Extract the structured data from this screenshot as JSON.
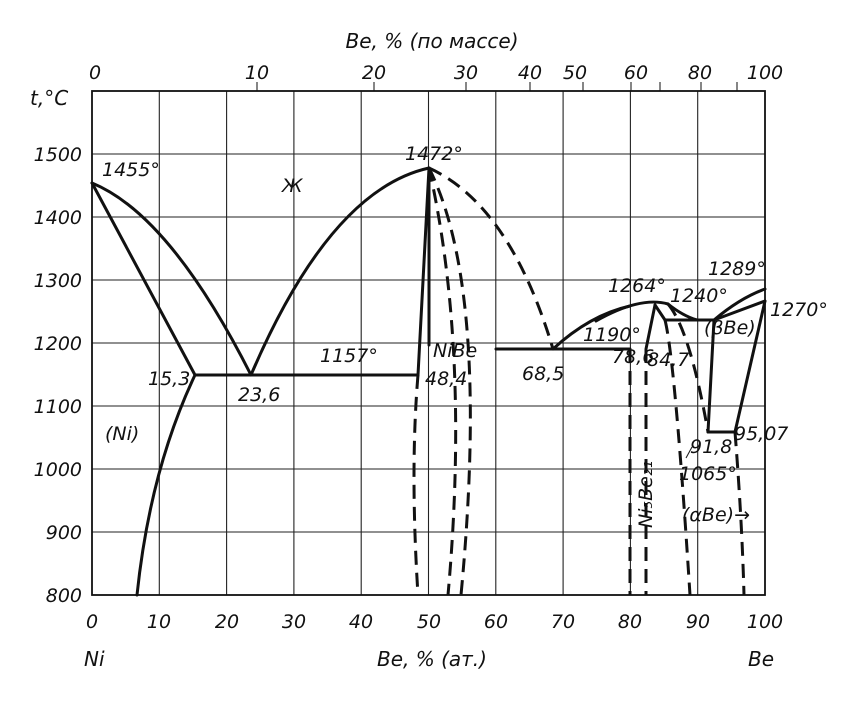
{
  "top_axis": {
    "title": "Be, % (по массе)",
    "ticks": [
      {
        "label": "0",
        "at": 0
      },
      {
        "label": "10",
        "at": 24.5
      },
      {
        "label": "20",
        "at": 42.0
      },
      {
        "label": "30",
        "at": 55.5
      },
      {
        "label": "40",
        "at": 65.0
      },
      {
        "label": "50",
        "at": 73.0
      },
      {
        "label": "60",
        "at": 80.0
      },
      {
        "label": "80",
        "at": 90.5
      },
      {
        "label": "100",
        "at": 100
      }
    ]
  },
  "bottom_axis": {
    "title": "Be, % (ат.)",
    "left_element": "Ni",
    "right_element": "Be",
    "ticks": [
      "0",
      "10",
      "20",
      "30",
      "40",
      "50",
      "60",
      "70",
      "80",
      "90",
      "100"
    ]
  },
  "left_axis": {
    "title": "t,°C",
    "ticks": [
      "1500",
      "1400",
      "1300",
      "1200",
      "1100",
      "1000",
      "900",
      "800"
    ]
  },
  "phase_labels": {
    "liquid": "Ж",
    "ni_solid": "(Ni)",
    "nibe": "NiBe",
    "ni5be21": "Ni₅Be₂₁",
    "beta_be": "(βBe)",
    "alpha_be": "(αBe)→"
  },
  "point_labels": {
    "t1455": "1455°",
    "t1472": "1472°",
    "t1157": "1157°",
    "t1190": "1190°",
    "t1264": "1264°",
    "t1240": "1240°",
    "t1289": "1289°",
    "t1270": "1270°",
    "t1065": "1065°",
    "c15_3": "15,3",
    "c23_6": "23,6",
    "c48_4": "48,4",
    "c68_5": "68,5",
    "c78_6": "78,6",
    "c84_7": "84,7",
    "c91_8": "91,8",
    "c95_07": "95,07"
  }
}
